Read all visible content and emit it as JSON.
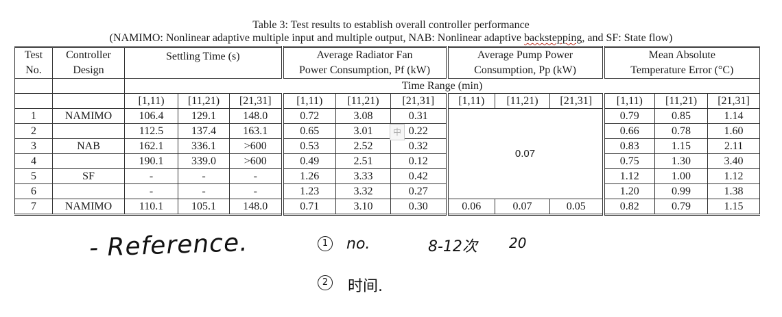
{
  "caption": {
    "title": "Table 3: Test results to establish overall controller performance",
    "subtitle_pre": "(NAMIMO: Nonlinear adaptive multiple input and multiple output, NAB: Nonlinear adaptive ",
    "subtitle_mark": "backstepping",
    "subtitle_post": ", and SF: State flow)"
  },
  "headers": {
    "test_no_1": "Test",
    "test_no_2": "No.",
    "controller_1": "Controller",
    "controller_2": "Design",
    "settling": "Settling Time  (s)",
    "fan_1": "Average  Radiator Fan",
    "fan_2": "Power Consumption, Pf  (kW)",
    "pump_1": "Average Pump Power",
    "pump_2": "Consumption, Pp  (kW)",
    "temp_1": "Mean Absolute",
    "temp_2": "Temperature Error (°C)",
    "time_range": "Time Range (min)"
  },
  "ranges": [
    "[1,11)",
    "[11,21)",
    "[21,31]",
    "[1,11)",
    "[11,21)",
    "[21,31]",
    "[1,11)",
    "[11,21)",
    "[21,31]",
    "[1,11)",
    "[11,21)",
    "[21,31]"
  ],
  "rows": [
    {
      "no": "1",
      "design": "NAMIMO",
      "st": [
        "106.4",
        "129.1",
        "148.0"
      ],
      "fan": [
        "0.72",
        "3.08",
        "0.31"
      ],
      "temp": [
        "0.79",
        "0.85",
        "1.14"
      ]
    },
    {
      "no": "2",
      "design": "",
      "st": [
        "112.5",
        "137.4",
        "163.1"
      ],
      "fan": [
        "0.65",
        "3.01",
        "0.22"
      ],
      "temp": [
        "0.66",
        "0.78",
        "1.60"
      ]
    },
    {
      "no": "3",
      "design": "NAB",
      "st": [
        "162.1",
        "336.1",
        ">600"
      ],
      "fan": [
        "0.53",
        "2.52",
        "0.32"
      ],
      "temp": [
        "0.83",
        "1.15",
        "2.11"
      ]
    },
    {
      "no": "4",
      "design": "",
      "st": [
        "190.1",
        "339.0",
        ">600"
      ],
      "fan": [
        "0.49",
        "2.51",
        "0.12"
      ],
      "temp": [
        "0.75",
        "1.30",
        "3.40"
      ]
    },
    {
      "no": "5",
      "design": "SF",
      "st": [
        "-",
        "-",
        "-"
      ],
      "fan": [
        "1.26",
        "3.33",
        "0.42"
      ],
      "temp": [
        "1.12",
        "1.00",
        "1.12"
      ]
    },
    {
      "no": "6",
      "design": "",
      "st": [
        "-",
        "-",
        "-"
      ],
      "fan": [
        "1.23",
        "3.32",
        "0.27"
      ],
      "temp": [
        "1.20",
        "0.99",
        "1.38"
      ]
    },
    {
      "no": "7",
      "design": "NAMIMO",
      "st": [
        "110.1",
        "105.1",
        "148.0"
      ],
      "fan": [
        "0.71",
        "3.10",
        "0.30"
      ],
      "pump": [
        "0.06",
        "0.07",
        "0.05"
      ],
      "temp": [
        "0.82",
        "0.79",
        "1.15"
      ]
    }
  ],
  "pump_merged": "0.07",
  "ime_glyph": "中",
  "notes": {
    "reference": "- Reference.",
    "item1_num": "1",
    "item1": "no.",
    "item1_range": "8-12次",
    "item1_20": "20",
    "item2_num": "2",
    "item2": "时间."
  }
}
